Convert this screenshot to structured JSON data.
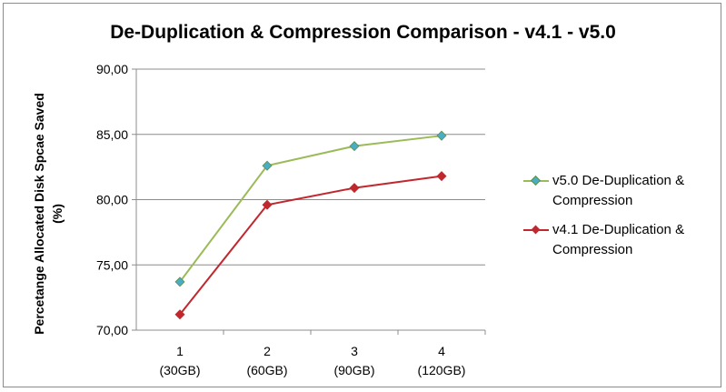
{
  "chart_data": {
    "type": "line",
    "title": "De-Duplication & Compression Comparison - v4.1 - v5.0",
    "ylabel_line1": "Percetange Allocated Disk Spcae Saved",
    "ylabel_line2": "(%)",
    "categories": [
      "1",
      "2",
      "3",
      "4"
    ],
    "category_sublabels": [
      "(30GB)",
      "(60GB)",
      "(90GB)",
      "(120GB)"
    ],
    "ylim": [
      70,
      90
    ],
    "yticks": [
      "70,00",
      "75,00",
      "80,00",
      "85,00",
      "90,00"
    ],
    "grid": true,
    "legend_position": "right",
    "series": [
      {
        "name": "v5.0 De-Duplication & Compression",
        "color": "#9bbb59",
        "marker_color": "#4bacc6",
        "values": [
          73.7,
          82.6,
          84.1,
          84.9
        ]
      },
      {
        "name": "v4.1 De-Duplication & Compression",
        "color": "#c0282e",
        "marker_color": "#c0282e",
        "values": [
          71.2,
          79.6,
          80.9,
          81.8
        ]
      }
    ]
  }
}
